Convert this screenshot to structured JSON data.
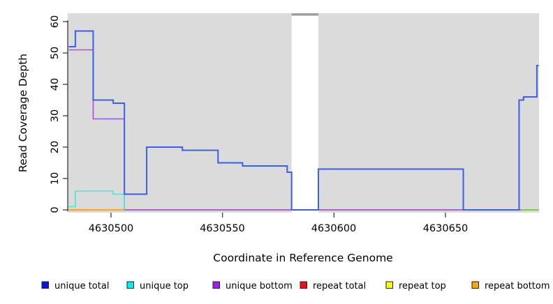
{
  "chart_data": {
    "type": "line",
    "subtype": "step-after",
    "title": "",
    "xlabel": "Coordinate in Reference Genome",
    "ylabel": "Read Coverage Depth",
    "xlim": [
      4630481,
      4630692
    ],
    "ylim": [
      0,
      62
    ],
    "grid": false,
    "plot_background": "#dbdbdb",
    "xticks": [
      4630500,
      4630550,
      4630600,
      4630650
    ],
    "xtick_labels": [
      "4630500",
      "4630550",
      "4630600",
      "4630650"
    ],
    "yticks": [
      0,
      10,
      20,
      30,
      40,
      50,
      60
    ],
    "ytick_labels": [
      "0",
      "10",
      "20",
      "30",
      "40",
      "50",
      "60"
    ],
    "gap_region": {
      "x_from": 4630581,
      "x_to": 4630593,
      "fill": "#ffffff",
      "top_cap_color": "#9e9e9e"
    },
    "legend": {
      "position": "bottom",
      "entries": [
        {
          "label": "unique total",
          "color": "#0f0fe8"
        },
        {
          "label": "unique top",
          "color": "#00f0f0"
        },
        {
          "label": "unique bottom",
          "color": "#a020f0"
        },
        {
          "label": "repeat total",
          "color": "#ee1111"
        },
        {
          "label": "repeat top",
          "color": "#fdfd10"
        },
        {
          "label": "repeat bottom",
          "color": "#ffa30f"
        }
      ]
    },
    "series": [
      {
        "name": "repeat bottom",
        "color": "#ffa510",
        "stroke_width": 2.2,
        "points": [
          [
            4630481,
            0
          ],
          [
            4630506,
            0
          ]
        ]
      },
      {
        "name": "repeat total",
        "color": "#d93b52",
        "stroke_width": 1.4,
        "points": [
          [
            4630506,
            0
          ],
          [
            4630692,
            0
          ]
        ]
      },
      {
        "name": "repeat top",
        "color": "#f2ed8a",
        "stroke_width": 3,
        "points": [
          [
            4630684,
            0
          ],
          [
            4630692,
            0
          ]
        ]
      },
      {
        "name": "unlabeled green zero segment",
        "color": "#48bb58",
        "stroke_width": 1.6,
        "points": [
          [
            4630684,
            0
          ],
          [
            4630692,
            0
          ]
        ]
      },
      {
        "name": "unique bottom",
        "color": "#a84fe0",
        "stroke_width": 1.6,
        "points": [
          [
            4630481,
            51
          ],
          [
            4630492,
            29
          ],
          [
            4630506,
            0
          ],
          [
            4630683,
            35
          ],
          [
            4630685,
            36
          ],
          [
            4630691,
            46
          ],
          [
            4630692,
            46
          ]
        ]
      },
      {
        "name": "unique top",
        "color": "#40e8e0",
        "stroke_width": 1.6,
        "points": [
          [
            4630481,
            1
          ],
          [
            4630484,
            6
          ],
          [
            4630501,
            5
          ],
          [
            4630506,
            0
          ]
        ]
      },
      {
        "name": "unique total",
        "color": "#3a5fe8",
        "stroke_width": 2,
        "points": [
          [
            4630481,
            52
          ],
          [
            4630484,
            57
          ],
          [
            4630492,
            35
          ],
          [
            4630501,
            34
          ],
          [
            4630506,
            5
          ],
          [
            4630516,
            20
          ],
          [
            4630532,
            19
          ],
          [
            4630548,
            15
          ],
          [
            4630559,
            14
          ],
          [
            4630579,
            12
          ],
          [
            4630581,
            0
          ],
          [
            4630593,
            13
          ],
          [
            4630658,
            0
          ],
          [
            4630683,
            35
          ],
          [
            4630685,
            36
          ],
          [
            4630691,
            46
          ],
          [
            4630692,
            46
          ]
        ]
      }
    ]
  }
}
